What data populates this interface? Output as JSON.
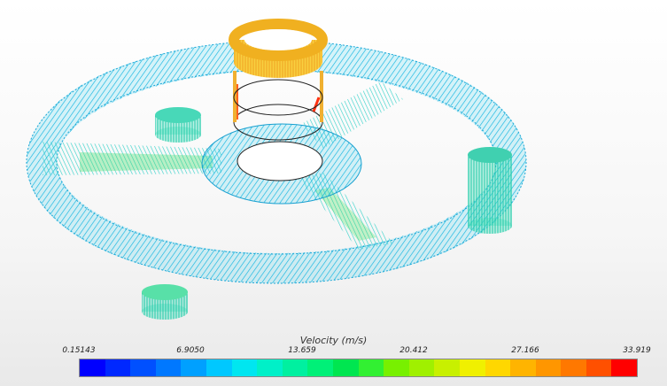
{
  "legend": {
    "title": "Velocity (m/s)",
    "ticks": [
      "0.15143",
      "6.9050",
      "13.659",
      "20.412",
      "27.166",
      "33.919"
    ],
    "colors": [
      "#0000ff",
      "#0028ff",
      "#0050ff",
      "#0078ff",
      "#00a0ff",
      "#00c8ff",
      "#00e6f0",
      "#00f0c8",
      "#00f0a0",
      "#00f078",
      "#00e650",
      "#32f032",
      "#78f000",
      "#a0f000",
      "#c8f000",
      "#f0f000",
      "#ffd700",
      "#ffb400",
      "#ff9600",
      "#ff7800",
      "#ff5000",
      "#ff0000"
    ]
  }
}
